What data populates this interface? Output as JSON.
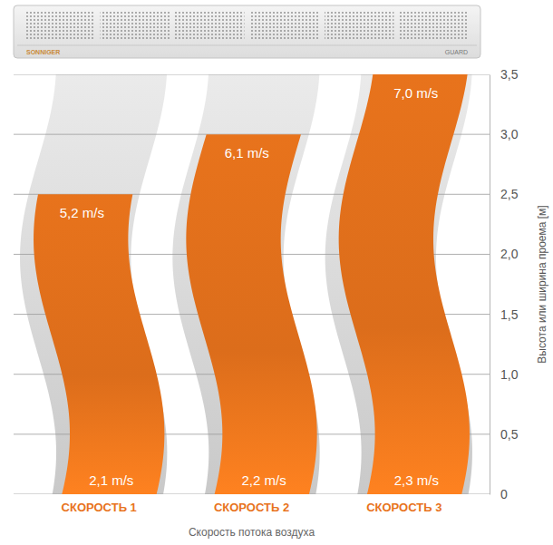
{
  "chart_data": {
    "type": "bar",
    "x_label": "Скорость потока воздуха",
    "y_label": "Высота или ширина проема [м]",
    "categories": [
      "СКОРОСТЬ 1",
      "СКОРОСТЬ 2",
      "СКОРОСТЬ 3"
    ],
    "values": [
      2.5,
      3.0,
      3.5
    ],
    "color": "#e8731c",
    "top_speed": [
      5.2,
      6.1,
      7.0
    ],
    "top_speed_labels": [
      "5,2 m/s",
      "6,1 m/s",
      "7,0 m/s"
    ],
    "outlet_speed": [
      2.1,
      2.2,
      2.3
    ],
    "outlet_speed_labels": [
      "2,1 m/s",
      "2,2 m/s",
      "2,3 m/s"
    ],
    "ylim": [
      0,
      3.5
    ],
    "yticks": [
      0,
      {
        "value": 0.5,
        "label": "0,5"
      },
      {
        "value": 1.0,
        "label": "1,0"
      },
      {
        "value": 1.5,
        "label": "1,5"
      },
      {
        "value": 2.0,
        "label": "2,0"
      },
      {
        "value": 2.5,
        "label": "2,5"
      },
      {
        "value": 3.0,
        "label": "3,0"
      },
      {
        "value": 3.5,
        "label": "3,5"
      }
    ],
    "grid": true,
    "annotations": [
      "SONNIGER",
      "GUARD"
    ]
  }
}
